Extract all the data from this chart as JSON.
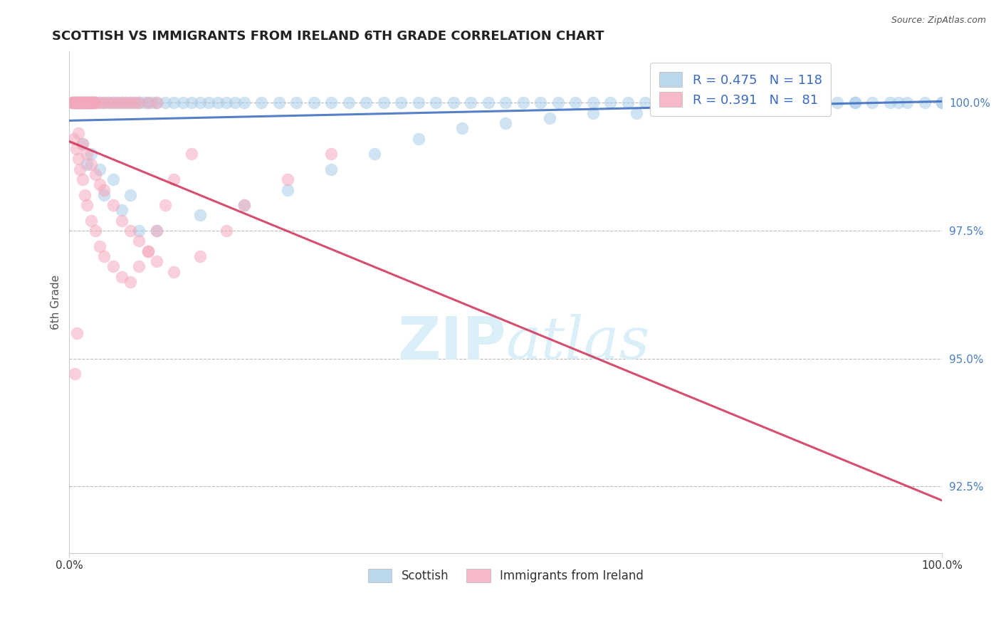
{
  "title": "SCOTTISH VS IMMIGRANTS FROM IRELAND 6TH GRADE CORRELATION CHART",
  "source": "Source: ZipAtlas.com",
  "ylabel": "6th Grade",
  "xlim": [
    0.0,
    100.0
  ],
  "ylim": [
    91.2,
    101.0
  ],
  "yticks": [
    92.5,
    95.0,
    97.5,
    100.0
  ],
  "xticks": [
    0.0,
    100.0
  ],
  "legend_blue_label": "Scottish",
  "legend_pink_label": "Immigrants from Ireland",
  "R_blue": 0.475,
  "N_blue": 118,
  "R_pink": 0.391,
  "N_pink": 81,
  "blue_color": "#aacde8",
  "pink_color": "#f4a8bc",
  "trend_blue_color": "#3a6abf",
  "trend_pink_color": "#d03055",
  "background_color": "#ffffff",
  "watermark_color": "#d8eef8",
  "blue_x": [
    0.4,
    0.5,
    0.6,
    0.7,
    0.8,
    0.9,
    1.0,
    1.1,
    1.2,
    1.3,
    1.4,
    1.5,
    1.6,
    1.7,
    1.8,
    1.9,
    2.0,
    2.1,
    2.2,
    2.3,
    2.4,
    2.5,
    2.6,
    2.7,
    2.8,
    2.9,
    3.0,
    3.5,
    4.0,
    4.5,
    5.0,
    5.5,
    6.0,
    6.5,
    7.0,
    7.5,
    8.0,
    8.5,
    9.0,
    9.5,
    10.0,
    11.0,
    12.0,
    13.0,
    14.0,
    15.0,
    16.0,
    17.0,
    18.0,
    19.0,
    20.0,
    22.0,
    24.0,
    26.0,
    28.0,
    30.0,
    32.0,
    34.0,
    36.0,
    38.0,
    40.0,
    42.0,
    44.0,
    46.0,
    48.0,
    50.0,
    52.0,
    54.0,
    56.0,
    58.0,
    60.0,
    62.0,
    64.0,
    66.0,
    68.0,
    70.0,
    72.0,
    74.0,
    76.0,
    78.0,
    80.0,
    82.0,
    84.0,
    86.0,
    88.0,
    90.0,
    92.0,
    94.0,
    96.0,
    98.0,
    100.0,
    1.5,
    2.5,
    3.5,
    5.0,
    7.0,
    10.0,
    15.0,
    20.0,
    25.0,
    30.0,
    35.0,
    40.0,
    45.0,
    50.0,
    55.0,
    60.0,
    65.0,
    70.0,
    75.0,
    80.0,
    85.0,
    90.0,
    95.0,
    100.0,
    2.0,
    4.0,
    6.0,
    8.0
  ],
  "blue_y": [
    100.0,
    100.0,
    100.0,
    100.0,
    100.0,
    100.0,
    100.0,
    100.0,
    100.0,
    100.0,
    100.0,
    100.0,
    100.0,
    100.0,
    100.0,
    100.0,
    100.0,
    100.0,
    100.0,
    100.0,
    100.0,
    100.0,
    100.0,
    100.0,
    100.0,
    100.0,
    100.0,
    100.0,
    100.0,
    100.0,
    100.0,
    100.0,
    100.0,
    100.0,
    100.0,
    100.0,
    100.0,
    100.0,
    100.0,
    100.0,
    100.0,
    100.0,
    100.0,
    100.0,
    100.0,
    100.0,
    100.0,
    100.0,
    100.0,
    100.0,
    100.0,
    100.0,
    100.0,
    100.0,
    100.0,
    100.0,
    100.0,
    100.0,
    100.0,
    100.0,
    100.0,
    100.0,
    100.0,
    100.0,
    100.0,
    100.0,
    100.0,
    100.0,
    100.0,
    100.0,
    100.0,
    100.0,
    100.0,
    100.0,
    100.0,
    100.0,
    100.0,
    100.0,
    100.0,
    100.0,
    100.0,
    100.0,
    100.0,
    100.0,
    100.0,
    100.0,
    100.0,
    100.0,
    100.0,
    100.0,
    100.0,
    99.2,
    99.0,
    98.7,
    98.5,
    98.2,
    97.5,
    97.8,
    98.0,
    98.3,
    98.7,
    99.0,
    99.3,
    99.5,
    99.6,
    99.7,
    99.8,
    99.8,
    99.9,
    99.9,
    100.0,
    100.0,
    100.0,
    100.0,
    100.0,
    98.8,
    98.2,
    97.9,
    97.5
  ],
  "pink_x": [
    0.3,
    0.4,
    0.5,
    0.6,
    0.7,
    0.8,
    0.9,
    1.0,
    1.1,
    1.2,
    1.3,
    1.4,
    1.5,
    1.6,
    1.7,
    1.8,
    1.9,
    2.0,
    2.1,
    2.2,
    2.3,
    2.4,
    2.5,
    2.6,
    2.7,
    2.8,
    2.9,
    3.0,
    3.5,
    4.0,
    4.5,
    5.0,
    5.5,
    6.0,
    6.5,
    7.0,
    7.5,
    8.0,
    9.0,
    10.0,
    0.5,
    0.8,
    1.0,
    1.2,
    1.5,
    1.8,
    2.0,
    2.5,
    3.0,
    3.5,
    4.0,
    5.0,
    6.0,
    7.0,
    8.0,
    9.0,
    10.0,
    11.0,
    12.0,
    14.0,
    1.0,
    1.5,
    2.0,
    2.5,
    3.0,
    3.5,
    4.0,
    5.0,
    6.0,
    7.0,
    8.0,
    9.0,
    10.0,
    12.0,
    15.0,
    18.0,
    20.0,
    25.0,
    30.0,
    0.6,
    0.9
  ],
  "pink_y": [
    100.0,
    100.0,
    100.0,
    100.0,
    100.0,
    100.0,
    100.0,
    100.0,
    100.0,
    100.0,
    100.0,
    100.0,
    100.0,
    100.0,
    100.0,
    100.0,
    100.0,
    100.0,
    100.0,
    100.0,
    100.0,
    100.0,
    100.0,
    100.0,
    100.0,
    100.0,
    100.0,
    100.0,
    100.0,
    100.0,
    100.0,
    100.0,
    100.0,
    100.0,
    100.0,
    100.0,
    100.0,
    100.0,
    100.0,
    100.0,
    99.3,
    99.1,
    98.9,
    98.7,
    98.5,
    98.2,
    98.0,
    97.7,
    97.5,
    97.2,
    97.0,
    96.8,
    96.6,
    96.5,
    96.8,
    97.1,
    97.5,
    98.0,
    98.5,
    99.0,
    99.4,
    99.2,
    99.0,
    98.8,
    98.6,
    98.4,
    98.3,
    98.0,
    97.7,
    97.5,
    97.3,
    97.1,
    96.9,
    96.7,
    97.0,
    97.5,
    98.0,
    98.5,
    99.0,
    94.7,
    95.5
  ]
}
